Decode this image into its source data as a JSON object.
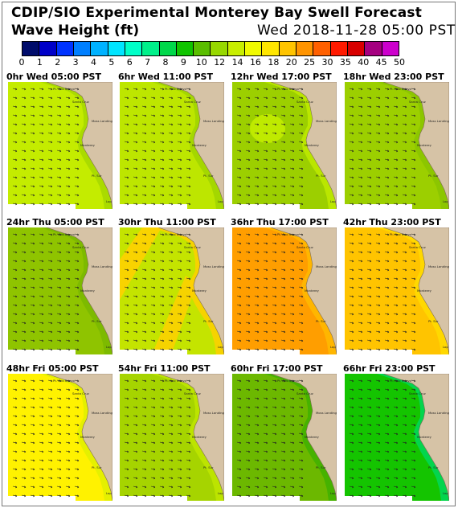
{
  "header": {
    "title": "CDIP/SIO Experimental Monterey Bay Swell Forecast",
    "subtitle": "Wave Height (ft)",
    "run_time": "Wed 2018-11-28 05:00 PST"
  },
  "colorbar": {
    "ticks": [
      "0",
      "1",
      "2",
      "3",
      "4",
      "5",
      "6",
      "7",
      "8",
      "9",
      "10",
      "12",
      "14",
      "16",
      "18",
      "20",
      "25",
      "30",
      "35",
      "40",
      "45",
      "50"
    ],
    "colors": [
      "#000c6b",
      "#0000c8",
      "#0033ff",
      "#007fff",
      "#00b2ff",
      "#00e5ff",
      "#00ffc8",
      "#00f08a",
      "#00d84a",
      "#10c400",
      "#5abe00",
      "#97d800",
      "#c8ee00",
      "#f0fa00",
      "#ffe600",
      "#ffc400",
      "#ff9400",
      "#ff6000",
      "#ff1a00",
      "#d80000",
      "#a50080",
      "#cc00cc"
    ]
  },
  "map_labels": {
    "ano_nuevo": "Pt. Ano Nuevo",
    "santa_cruz": "Santa Cruz",
    "moss_landing": "Moss Landing",
    "monterey": "Monterey",
    "pt_sur": "Pt. Sur",
    "lopez": "Lop"
  },
  "panels": [
    {
      "label": "0hr  Wed 05:00 PST",
      "sea_color": "#c4ec00",
      "shelf_color": "#a6d800",
      "hint": "uniform"
    },
    {
      "label": "6hr  Wed 11:00 PST",
      "sea_color": "#bde600",
      "shelf_color": "#a0d400",
      "hint": "uniform"
    },
    {
      "label": "12hr  Wed 17:00 PST",
      "sea_color": "#9ccf00",
      "shelf_color": "#bfea00",
      "hint": "blob"
    },
    {
      "label": "18hr  Wed 23:00 PST",
      "sea_color": "#9ccf00",
      "shelf_color": "#8ac400",
      "hint": "uniform"
    },
    {
      "label": "24hr  Thu 05:00 PST",
      "sea_color": "#8fc400",
      "shelf_color": "#7ab800",
      "hint": "uniform"
    },
    {
      "label": "30hr  Thu 11:00 PST",
      "sea_color": "#c4e400",
      "shelf_color": "#ffd000",
      "hint": "bands"
    },
    {
      "label": "36hr  Thu 17:00 PST",
      "sea_color": "#ff9e00",
      "shelf_color": "#ffba00",
      "hint": "uniform"
    },
    {
      "label": "42hr  Thu 23:00 PST",
      "sea_color": "#ffc400",
      "shelf_color": "#ffdc00",
      "hint": "uniform"
    },
    {
      "label": "48hr  Fri 05:00 PST",
      "sea_color": "#fff200",
      "shelf_color": "#e0f000",
      "hint": "uniform"
    },
    {
      "label": "54hr  Fri 11:00 PST",
      "sea_color": "#a6d400",
      "shelf_color": "#bfe600",
      "hint": "uniform"
    },
    {
      "label": "60hr  Fri 17:00 PST",
      "sea_color": "#6cb800",
      "shelf_color": "#40b000",
      "hint": "uniform"
    },
    {
      "label": "66hr  Fri 23:00 PST",
      "sea_color": "#14c400",
      "shelf_color": "#00d85a",
      "hint": "uniform"
    }
  ]
}
